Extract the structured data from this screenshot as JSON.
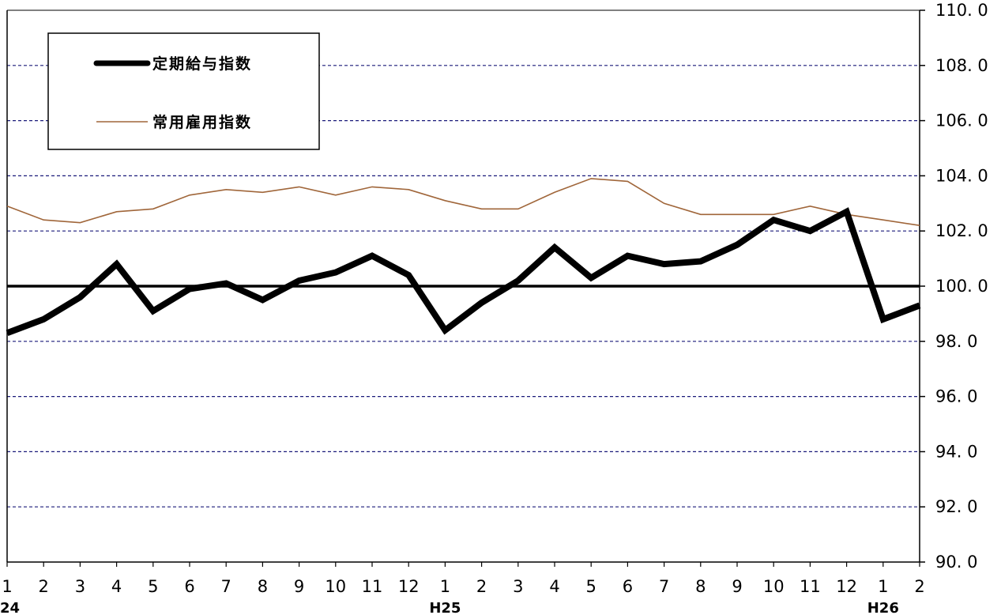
{
  "chart_data": {
    "type": "line",
    "x": [
      "1",
      "2",
      "3",
      "4",
      "5",
      "6",
      "7",
      "8",
      "9",
      "10",
      "11",
      "12",
      "1",
      "2",
      "3",
      "4",
      "5",
      "6",
      "7",
      "8",
      "9",
      "10",
      "11",
      "12",
      "1",
      "2"
    ],
    "era_labels": [
      {
        "index": 0,
        "text": "24"
      },
      {
        "index": 12,
        "text": "H25"
      },
      {
        "index": 24,
        "text": "H26"
      }
    ],
    "series": [
      {
        "name": "定期給与指数",
        "color": "#000000",
        "values": [
          98.3,
          98.8,
          99.6,
          100.8,
          99.1,
          99.9,
          100.1,
          99.5,
          100.2,
          100.5,
          101.1,
          100.4,
          98.4,
          99.4,
          100.2,
          101.4,
          100.3,
          101.1,
          100.8,
          100.9,
          101.5,
          102.4,
          102.0,
          102.7,
          98.8,
          99.3
        ]
      },
      {
        "name": "常用雇用指数",
        "color": "#a0663a",
        "values": [
          102.9,
          102.4,
          102.3,
          102.7,
          102.8,
          103.3,
          103.5,
          103.4,
          103.6,
          103.3,
          103.6,
          103.5,
          103.1,
          102.8,
          102.8,
          103.4,
          103.9,
          103.8,
          103.0,
          102.6,
          102.6,
          102.6,
          102.9,
          102.6,
          102.4,
          102.2
        ]
      }
    ],
    "y_ticks": [
      "110. 0",
      "108. 0",
      "106. 0",
      "104. 0",
      "102. 0",
      "100. 0",
      "98. 0",
      "96. 0",
      "94. 0",
      "92. 0",
      "90. 0"
    ],
    "ylim": [
      90,
      110
    ],
    "y_axis_side": "right",
    "reference_line": 100,
    "grid": true,
    "legend_position": "top-left"
  }
}
